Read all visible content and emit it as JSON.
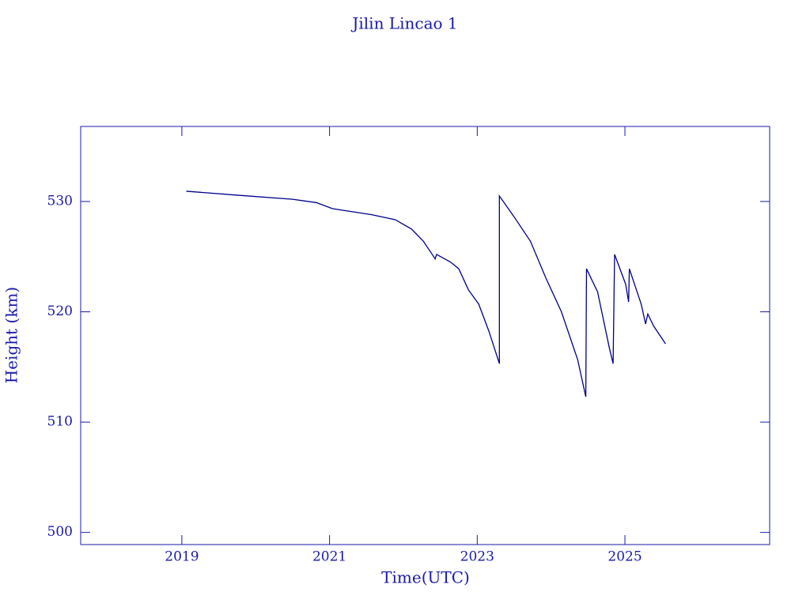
{
  "chart_data": {
    "type": "line",
    "title": "Jilin Lincao 1",
    "x_label": "Time(UTC)",
    "y_label": "Height (km)",
    "x": [
      2019.06,
      2019.75,
      2020.5,
      2020.82,
      2021.04,
      2021.57,
      2021.89,
      2022.11,
      2022.27,
      2022.41,
      2022.43,
      2022.45,
      2022.64,
      2022.75,
      2022.88,
      2023.02,
      2023.16,
      2023.3,
      2023.3,
      2023.5,
      2023.72,
      2023.93,
      2024.14,
      2024.36,
      2024.47,
      2024.48,
      2024.63,
      2024.79,
      2024.84,
      2024.86,
      2025.01,
      2025.05,
      2025.06,
      2025.22,
      2025.28,
      2025.31,
      2025.39,
      2025.55
    ],
    "values": [
      530.93,
      530.57,
      530.2,
      529.9,
      529.35,
      528.8,
      528.35,
      527.5,
      526.4,
      525.0,
      524.8,
      525.2,
      524.5,
      523.9,
      522.0,
      520.7,
      518.2,
      515.3,
      530.5,
      528.6,
      526.4,
      523.05,
      520.0,
      515.66,
      512.3,
      523.9,
      521.8,
      516.7,
      515.3,
      525.2,
      522.5,
      520.9,
      523.9,
      520.7,
      518.9,
      519.8,
      518.7,
      517.1
    ],
    "color": "#00008b",
    "xlim": [
      2017.63,
      2026.96
    ],
    "xticks": [
      2019,
      2021,
      2023,
      2025
    ],
    "ylim": [
      498.9,
      536.8
    ],
    "yticks": [
      500,
      510,
      520,
      530
    ]
  }
}
